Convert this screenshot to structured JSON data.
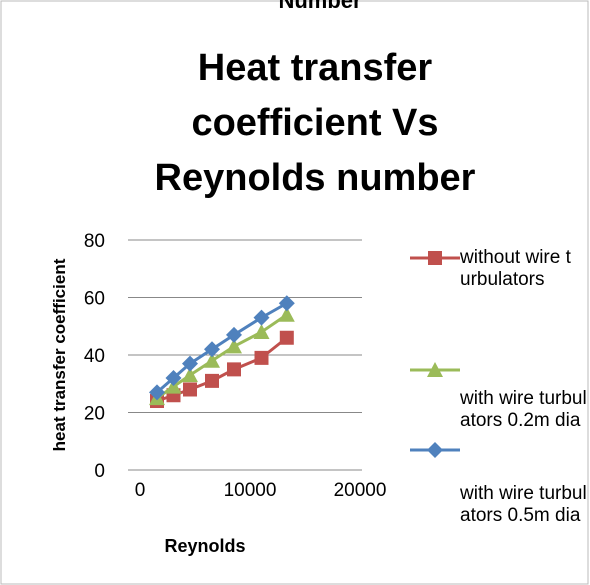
{
  "chart_data": {
    "type": "line",
    "top_text": "Number",
    "title": "Heat transfer coefficient Vs Reynolds number",
    "x_label": "Reynolds",
    "y_label": "heat transfer coefficient",
    "xlim": [
      0,
      20000
    ],
    "xticks": [
      0,
      10000,
      20000
    ],
    "ylim": [
      0,
      80
    ],
    "yticks": [
      0,
      20,
      40,
      60,
      80
    ],
    "grid": true,
    "legend": "right",
    "x": [
      2000,
      3500,
      5000,
      7000,
      9000,
      11500,
      13800
    ],
    "series": [
      {
        "name": "without wire turbulators",
        "color": "#c0504d",
        "marker": "square",
        "values": [
          24,
          26,
          28,
          31,
          35,
          39,
          46
        ]
      },
      {
        "name": "with wire turbulators 0.2m dia",
        "color": "#9bbb59",
        "marker": "triangle",
        "values": [
          25,
          29,
          33,
          38,
          43,
          48,
          54
        ]
      },
      {
        "name": "with wire turbulators 0.5m dia",
        "color": "#4f81bd",
        "marker": "diamond",
        "values": [
          27,
          32,
          37,
          42,
          47,
          53,
          58
        ]
      }
    ]
  }
}
